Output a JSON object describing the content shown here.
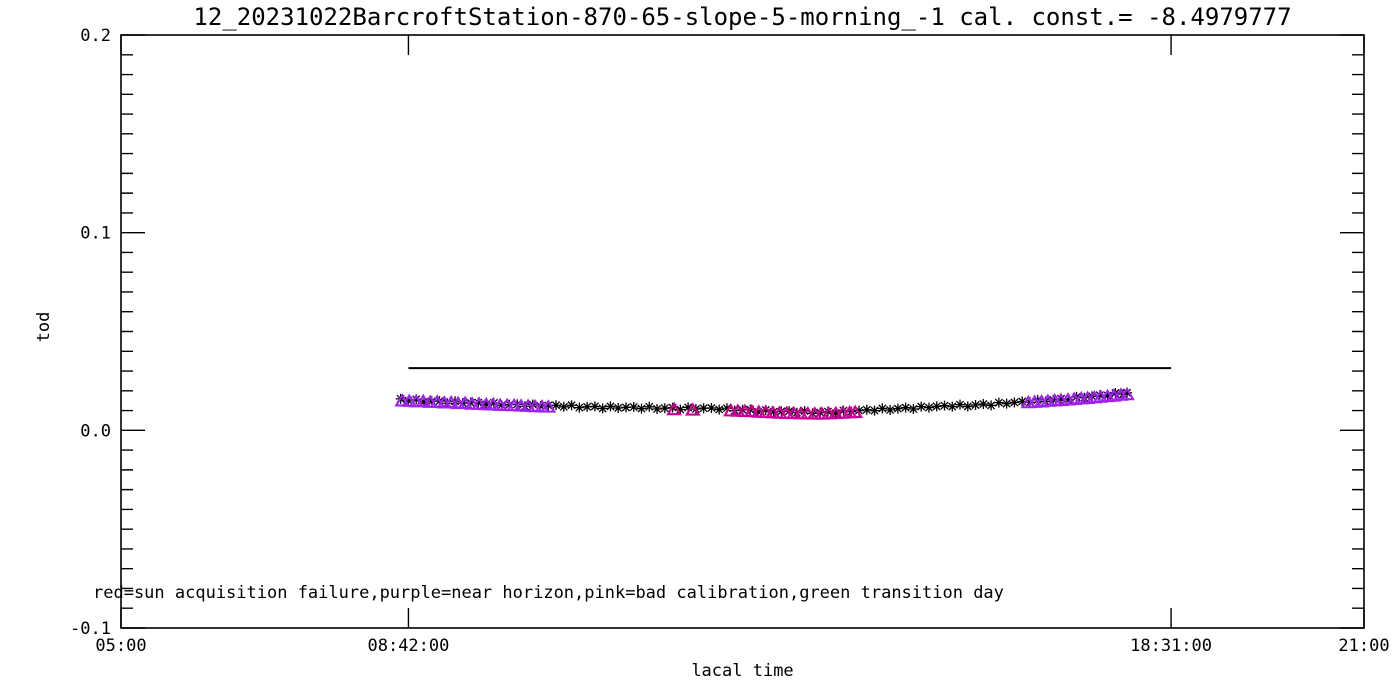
{
  "chart_data": {
    "type": "scatter",
    "title": "12_20231022BarcroftStation-870-65-slope-5-morning_-1 cal. const.= -8.4979777",
    "xlabel": "lacal time",
    "ylabel": "tod",
    "annotation": "red=sun acquisition failure,purple=near horizon,pink=bad calibration,green transition day",
    "grid": "off",
    "legend": "none (color meaning given in annotation text)",
    "x_axis": {
      "min": 5,
      "max": 21,
      "major_ticks": [
        {
          "value": 5,
          "label": "05:00"
        },
        {
          "value": 8.7,
          "label": "08:42:00"
        },
        {
          "value": 18.5167,
          "label": "18:31:00"
        },
        {
          "value": 21,
          "label": "21:00"
        }
      ],
      "minor_ticks": "none"
    },
    "y_axis": {
      "min": -0.1,
      "max": 0.2,
      "major_ticks": [
        {
          "value": -0.1,
          "label": "-0.1"
        },
        {
          "value": 0.0,
          "label": "0.0"
        },
        {
          "value": 0.1,
          "label": "0.1"
        },
        {
          "value": 0.2,
          "label": "0.2"
        }
      ],
      "minor_tick_step": 0.01
    },
    "reference_line": {
      "y": 0.0315,
      "x_start": 8.7,
      "x_end": 18.5167,
      "color": "#000000",
      "width": 2
    },
    "colors": {
      "axis": "#000000",
      "normal": "#000000",
      "near_horizon": "#A020F0",
      "bad_calibration": "#CC0099"
    },
    "series": [
      {
        "name": "normal",
        "symbol": "asterisk",
        "color": "#000000",
        "points": [
          [
            8.6,
            0.0159
          ],
          [
            8.7,
            0.015
          ],
          [
            8.8,
            0.0157
          ],
          [
            8.9,
            0.0144
          ],
          [
            9.0,
            0.0147
          ],
          [
            9.1,
            0.0148
          ],
          [
            9.2,
            0.0137
          ],
          [
            9.3,
            0.0147
          ],
          [
            9.4,
            0.0138
          ],
          [
            9.5,
            0.014
          ],
          [
            9.6,
            0.014
          ],
          [
            9.7,
            0.0132
          ],
          [
            9.8,
            0.0139
          ],
          [
            9.9,
            0.0127
          ],
          [
            10.0,
            0.013
          ],
          [
            10.1,
            0.0132
          ],
          [
            10.2,
            0.0122
          ],
          [
            10.3,
            0.0131
          ],
          [
            10.4,
            0.0123
          ],
          [
            10.5,
            0.0126
          ],
          [
            10.6,
            0.0127
          ],
          [
            10.7,
            0.0119
          ],
          [
            10.8,
            0.0127
          ],
          [
            10.9,
            0.0115
          ],
          [
            11.0,
            0.0119
          ],
          [
            11.1,
            0.0121
          ],
          [
            11.2,
            0.0111
          ],
          [
            11.3,
            0.0121
          ],
          [
            11.4,
            0.0113
          ],
          [
            11.5,
            0.0116
          ],
          [
            11.6,
            0.0118
          ],
          [
            11.7,
            0.011
          ],
          [
            11.8,
            0.0119
          ],
          [
            11.9,
            0.0108
          ],
          [
            12.0,
            0.0112
          ],
          [
            12.1,
            0.0115
          ],
          [
            12.2,
            0.0105
          ],
          [
            12.3,
            0.0116
          ],
          [
            12.4,
            0.0108
          ],
          [
            12.5,
            0.0112
          ],
          [
            12.6,
            0.0113
          ],
          [
            12.7,
            0.0105
          ],
          [
            12.8,
            0.0112
          ],
          [
            12.9,
            0.01
          ],
          [
            13.0,
            0.0104
          ],
          [
            13.1,
            0.0105
          ],
          [
            13.2,
            0.0094
          ],
          [
            13.3,
            0.0103
          ],
          [
            13.4,
            0.0094
          ],
          [
            13.5,
            0.0096
          ],
          [
            13.6,
            0.0097
          ],
          [
            13.7,
            0.0089
          ],
          [
            13.8,
            0.0098
          ],
          [
            13.9,
            0.0086
          ],
          [
            14.0,
            0.009
          ],
          [
            14.1,
            0.0095
          ],
          [
            14.2,
            0.0087
          ],
          [
            14.3,
            0.01
          ],
          [
            14.4,
            0.0094
          ],
          [
            14.5,
            0.01
          ],
          [
            14.6,
            0.0104
          ],
          [
            14.7,
            0.01
          ],
          [
            14.8,
            0.0111
          ],
          [
            14.9,
            0.0103
          ],
          [
            15.0,
            0.011
          ],
          [
            15.1,
            0.0115
          ],
          [
            15.2,
            0.0108
          ],
          [
            15.3,
            0.012
          ],
          [
            15.4,
            0.0115
          ],
          [
            15.5,
            0.0121
          ],
          [
            15.6,
            0.0125
          ],
          [
            15.7,
            0.012
          ],
          [
            15.8,
            0.013
          ],
          [
            15.9,
            0.0121
          ],
          [
            16.0,
            0.0128
          ],
          [
            16.1,
            0.0133
          ],
          [
            16.2,
            0.0126
          ],
          [
            16.3,
            0.014
          ],
          [
            16.4,
            0.0135
          ],
          [
            16.5,
            0.0141
          ],
          [
            16.6,
            0.0146
          ],
          [
            16.7,
            0.0142
          ],
          [
            16.8,
            0.0154
          ],
          [
            16.9,
            0.0146
          ],
          [
            17.0,
            0.0154
          ],
          [
            17.1,
            0.016
          ],
          [
            17.2,
            0.0154
          ],
          [
            17.3,
            0.0169
          ],
          [
            17.4,
            0.0165
          ],
          [
            17.5,
            0.0172
          ],
          [
            17.6,
            0.0178
          ],
          [
            17.7,
            0.0176
          ],
          [
            17.8,
            0.0189
          ],
          [
            17.9,
            0.0183
          ],
          [
            17.95,
            0.019
          ]
        ]
      },
      {
        "name": "near_horizon",
        "symbol": "triangle",
        "color": "#A020F0",
        "points": [
          [
            8.62,
            0.015
          ],
          [
            8.71,
            0.0148
          ],
          [
            8.8,
            0.0146
          ],
          [
            8.89,
            0.0147
          ],
          [
            8.98,
            0.0143
          ],
          [
            9.07,
            0.0144
          ],
          [
            9.16,
            0.014
          ],
          [
            9.25,
            0.0141
          ],
          [
            9.34,
            0.0137
          ],
          [
            9.43,
            0.0138
          ],
          [
            9.52,
            0.0134
          ],
          [
            9.61,
            0.0133
          ],
          [
            9.7,
            0.0131
          ],
          [
            9.79,
            0.013
          ],
          [
            9.88,
            0.0128
          ],
          [
            9.97,
            0.0127
          ],
          [
            10.06,
            0.0126
          ],
          [
            10.15,
            0.0124
          ],
          [
            10.24,
            0.0123
          ],
          [
            10.33,
            0.0121
          ],
          [
            10.42,
            0.012
          ],
          [
            10.5,
            0.0119
          ],
          [
            16.68,
            0.0141
          ],
          [
            16.76,
            0.0143
          ],
          [
            16.85,
            0.0145
          ],
          [
            16.93,
            0.0148
          ],
          [
            17.02,
            0.015
          ],
          [
            17.1,
            0.0153
          ],
          [
            17.19,
            0.0155
          ],
          [
            17.27,
            0.0158
          ],
          [
            17.36,
            0.0161
          ],
          [
            17.44,
            0.0163
          ],
          [
            17.53,
            0.0166
          ],
          [
            17.61,
            0.0169
          ],
          [
            17.7,
            0.0172
          ],
          [
            17.78,
            0.0175
          ],
          [
            17.87,
            0.0179
          ],
          [
            17.95,
            0.0182
          ]
        ]
      },
      {
        "name": "bad_calibration",
        "symbol": "triangle",
        "color": "#CC0099",
        "points": [
          [
            12.12,
            0.0106
          ],
          [
            12.36,
            0.0104
          ],
          [
            12.85,
            0.01
          ],
          [
            12.94,
            0.0098
          ],
          [
            13.03,
            0.0097
          ],
          [
            13.12,
            0.0096
          ],
          [
            13.21,
            0.0093
          ],
          [
            13.3,
            0.0092
          ],
          [
            13.39,
            0.009
          ],
          [
            13.48,
            0.0088
          ],
          [
            13.57,
            0.0087
          ],
          [
            13.66,
            0.0086
          ],
          [
            13.75,
            0.0085
          ],
          [
            13.84,
            0.0085
          ],
          [
            13.93,
            0.0084
          ],
          [
            14.02,
            0.0084
          ],
          [
            14.11,
            0.0085
          ],
          [
            14.2,
            0.0086
          ],
          [
            14.29,
            0.0088
          ],
          [
            14.38,
            0.009
          ],
          [
            14.45,
            0.0092
          ]
        ]
      }
    ]
  }
}
